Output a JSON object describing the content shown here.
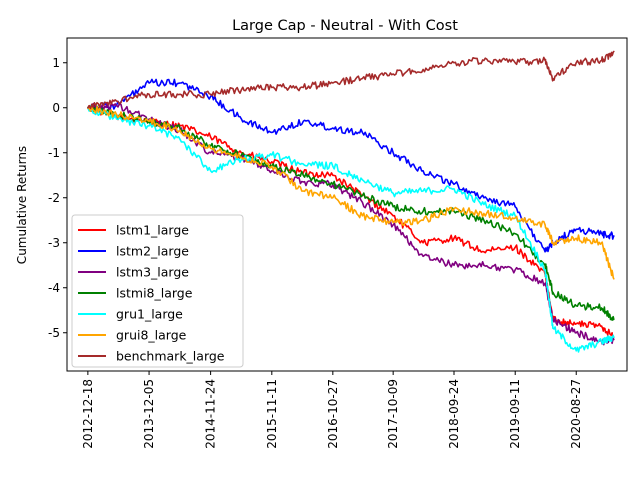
{
  "chart_data": {
    "type": "line",
    "title": "Large Cap - Neutral - With Cost",
    "xlabel": "",
    "ylabel": "Cumulative Returns",
    "x_tick_labels": [
      "2012-12-18",
      "2013-12-05",
      "2014-11-24",
      "2015-11-11",
      "2016-10-27",
      "2017-10-09",
      "2018-09-24",
      "2019-09-11",
      "2020-08-27"
    ],
    "x_dates": [
      "2012-12-18",
      "2013-06-01",
      "2013-12-05",
      "2014-06-01",
      "2014-11-24",
      "2015-05-20",
      "2015-11-11",
      "2016-05-10",
      "2016-10-27",
      "2017-04-15",
      "2017-10-09",
      "2018-03-30",
      "2018-09-24",
      "2019-03-15",
      "2019-09-11",
      "2020-03-01",
      "2020-04-15",
      "2020-08-27",
      "2021-01-20",
      "2021-03-31"
    ],
    "yticks": [
      -5,
      -4,
      -3,
      -2,
      -1,
      0,
      1
    ],
    "xlim": [
      "2012-08-20",
      "2021-06-15"
    ],
    "ylim": [
      -5.85,
      1.55
    ],
    "grid": false,
    "legend_position": "lower-left",
    "series": [
      {
        "name": "lstm1_large",
        "color": "#ff0000",
        "values": [
          0.0,
          -0.2,
          -0.3,
          -0.4,
          -0.65,
          -1.0,
          -1.2,
          -1.45,
          -1.5,
          -1.95,
          -2.4,
          -3.0,
          -2.9,
          -3.2,
          -3.1,
          -3.7,
          -4.7,
          -4.8,
          -4.85,
          -5.1
        ]
      },
      {
        "name": "lstm2_large",
        "color": "#0000ff",
        "values": [
          0.0,
          0.05,
          0.55,
          0.55,
          0.25,
          -0.25,
          -0.55,
          -0.3,
          -0.45,
          -0.55,
          -1.0,
          -1.4,
          -1.7,
          -2.0,
          -2.2,
          -3.2,
          -3.0,
          -2.7,
          -2.8,
          -2.85
        ]
      },
      {
        "name": "lstm3_large",
        "color": "#800080",
        "values": [
          0.0,
          0.05,
          -0.25,
          -0.5,
          -1.0,
          -1.1,
          -1.4,
          -1.65,
          -1.7,
          -2.1,
          -2.6,
          -3.3,
          -3.5,
          -3.5,
          -3.6,
          -3.9,
          -4.7,
          -5.0,
          -5.2,
          -5.15
        ]
      },
      {
        "name": "lstmi8_large",
        "color": "#008000",
        "values": [
          0.0,
          -0.15,
          -0.3,
          -0.45,
          -0.85,
          -1.05,
          -1.3,
          -1.5,
          -1.7,
          -1.95,
          -2.2,
          -2.3,
          -2.3,
          -2.5,
          -2.8,
          -3.5,
          -4.1,
          -4.4,
          -4.45,
          -4.7
        ]
      },
      {
        "name": "gru1_large",
        "color": "#00ffff",
        "values": [
          0.0,
          -0.25,
          -0.4,
          -0.7,
          -1.4,
          -1.15,
          -1.05,
          -1.25,
          -1.3,
          -1.6,
          -1.9,
          -1.85,
          -1.8,
          -2.15,
          -2.4,
          -3.6,
          -4.9,
          -5.4,
          -5.2,
          -5.1
        ]
      },
      {
        "name": "grui8_large",
        "color": "#ffa500",
        "values": [
          0.0,
          -0.15,
          -0.3,
          -0.5,
          -0.9,
          -1.1,
          -1.3,
          -1.85,
          -2.0,
          -2.4,
          -2.55,
          -2.5,
          -2.25,
          -2.35,
          -2.45,
          -2.6,
          -3.0,
          -2.9,
          -3.0,
          -3.8
        ]
      },
      {
        "name": "benchmark_large",
        "color": "#a52a2a",
        "values": [
          0.0,
          0.15,
          0.3,
          0.3,
          0.3,
          0.4,
          0.45,
          0.45,
          0.55,
          0.65,
          0.75,
          0.85,
          1.0,
          1.05,
          1.0,
          1.05,
          0.65,
          1.0,
          1.05,
          1.25
        ]
      }
    ]
  }
}
